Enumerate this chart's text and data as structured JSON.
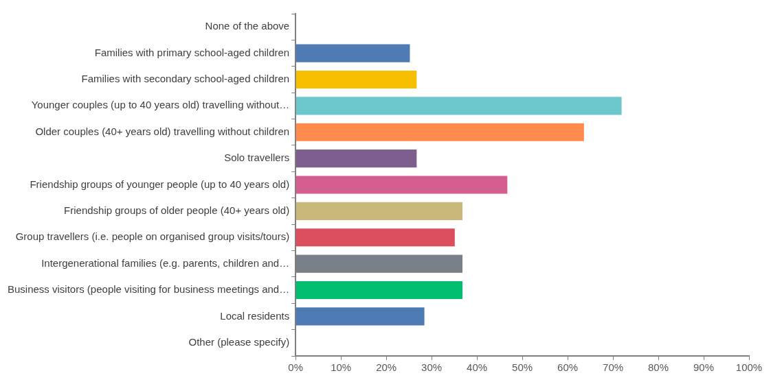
{
  "chart_data": {
    "type": "bar",
    "orientation": "horizontal",
    "categories": [
      "None of the above",
      "Families with primary school-aged children",
      "Families with secondary school-aged children",
      "Younger couples (up to 40 years old) travelling without…",
      "Older couples (40+ years old) travelling without children",
      "Solo travellers",
      "Friendship groups of younger people (up to 40 years old)",
      "Friendship groups of older people (40+ years old)",
      "Group travellers (i.e. people on organised group visits/tours)",
      "Intergenerational families (e.g. parents, children and…",
      "Business visitors (people visiting for business meetings and…",
      "Local residents",
      "Other (please specify)"
    ],
    "values": [
      0,
      25.2,
      26.7,
      71.9,
      63.6,
      26.7,
      46.7,
      36.8,
      35.1,
      36.8,
      36.8,
      28.4,
      0
    ],
    "colors": [
      "#4f7bb5",
      "#4f7bb5",
      "#f8bf00",
      "#6cc8cc",
      "#ff8a4d",
      "#7e5e8f",
      "#d45e8e",
      "#c9b87a",
      "#db4e5d",
      "#787f87",
      "#00bf6f",
      "#4f7bb5",
      "#4f7bb5"
    ],
    "xlim": [
      0,
      100
    ],
    "xticks": [
      {
        "value": 0,
        "label": "0%"
      },
      {
        "value": 10,
        "label": "10%"
      },
      {
        "value": 20,
        "label": "20%"
      },
      {
        "value": 30,
        "label": "30%"
      },
      {
        "value": 40,
        "label": "40%"
      },
      {
        "value": 50,
        "label": "50%"
      },
      {
        "value": 60,
        "label": "60%"
      },
      {
        "value": 70,
        "label": "70%"
      },
      {
        "value": 80,
        "label": "80%"
      },
      {
        "value": 90,
        "label": "90%"
      },
      {
        "value": 100,
        "label": "100%"
      }
    ],
    "grid": false,
    "legend": false
  }
}
